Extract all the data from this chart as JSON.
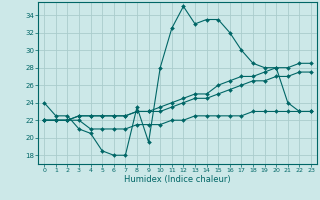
{
  "title": "",
  "xlabel": "Humidex (Indice chaleur)",
  "bg_color": "#cce8e8",
  "grid_color": "#aacccc",
  "line_color": "#006666",
  "xlim": [
    -0.5,
    23.5
  ],
  "ylim": [
    17,
    35.5
  ],
  "yticks": [
    18,
    20,
    22,
    24,
    26,
    28,
    30,
    32,
    34
  ],
  "xticks": [
    0,
    1,
    2,
    3,
    4,
    5,
    6,
    7,
    8,
    9,
    10,
    11,
    12,
    13,
    14,
    15,
    16,
    17,
    18,
    19,
    20,
    21,
    22,
    23
  ],
  "line1_x": [
    0,
    1,
    2,
    3,
    4,
    5,
    6,
    7,
    8,
    9,
    10,
    11,
    12,
    13,
    14,
    15,
    16,
    17,
    18,
    19,
    20,
    21,
    22,
    23
  ],
  "line1_y": [
    24,
    22.5,
    22.5,
    21,
    20.5,
    18.5,
    18,
    18,
    23.5,
    19.5,
    28,
    32.5,
    35,
    33,
    33.5,
    33.5,
    32,
    30,
    28.5,
    28,
    28,
    24,
    23,
    23
  ],
  "line2_x": [
    0,
    1,
    2,
    3,
    4,
    5,
    6,
    7,
    8,
    9,
    10,
    11,
    12,
    13,
    14,
    15,
    16,
    17,
    18,
    19,
    20,
    21,
    22,
    23
  ],
  "line2_y": [
    22,
    22,
    22,
    22.5,
    22.5,
    22.5,
    22.5,
    22.5,
    23,
    23,
    23.5,
    24,
    24.5,
    25,
    25,
    26,
    26.5,
    27,
    27,
    27.5,
    28,
    28,
    28.5,
    28.5
  ],
  "line3_x": [
    0,
    1,
    2,
    3,
    4,
    5,
    6,
    7,
    8,
    9,
    10,
    11,
    12,
    13,
    14,
    15,
    16,
    17,
    18,
    19,
    20,
    21,
    22,
    23
  ],
  "line3_y": [
    22,
    22,
    22,
    22.5,
    22.5,
    22.5,
    22.5,
    22.5,
    23,
    23,
    23,
    23.5,
    24,
    24.5,
    24.5,
    25,
    25.5,
    26,
    26.5,
    26.5,
    27,
    27,
    27.5,
    27.5
  ],
  "line4_x": [
    0,
    1,
    2,
    3,
    4,
    5,
    6,
    7,
    8,
    9,
    10,
    11,
    12,
    13,
    14,
    15,
    16,
    17,
    18,
    19,
    20,
    21,
    22,
    23
  ],
  "line4_y": [
    22,
    22,
    22,
    22,
    21,
    21,
    21,
    21,
    21.5,
    21.5,
    21.5,
    22,
    22,
    22.5,
    22.5,
    22.5,
    22.5,
    22.5,
    23,
    23,
    23,
    23,
    23,
    23
  ]
}
